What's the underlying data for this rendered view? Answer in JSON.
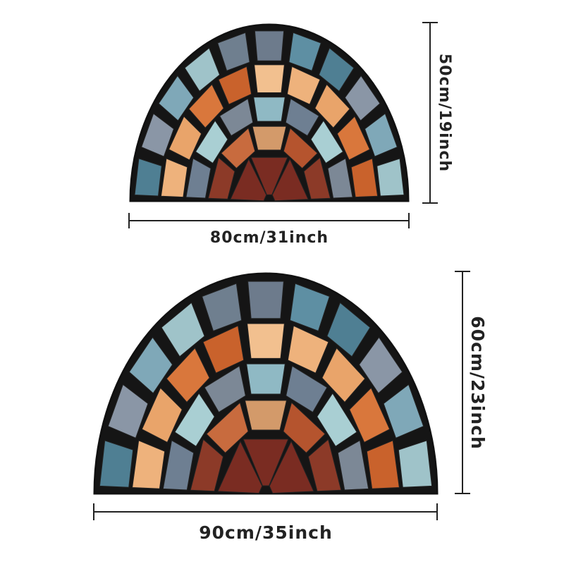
{
  "mats": [
    {
      "width_label": "80cm/31inch",
      "height_label": "50cm/19inch"
    },
    {
      "width_label": "90cm/35inch",
      "height_label": "60cm/23inch"
    }
  ]
}
